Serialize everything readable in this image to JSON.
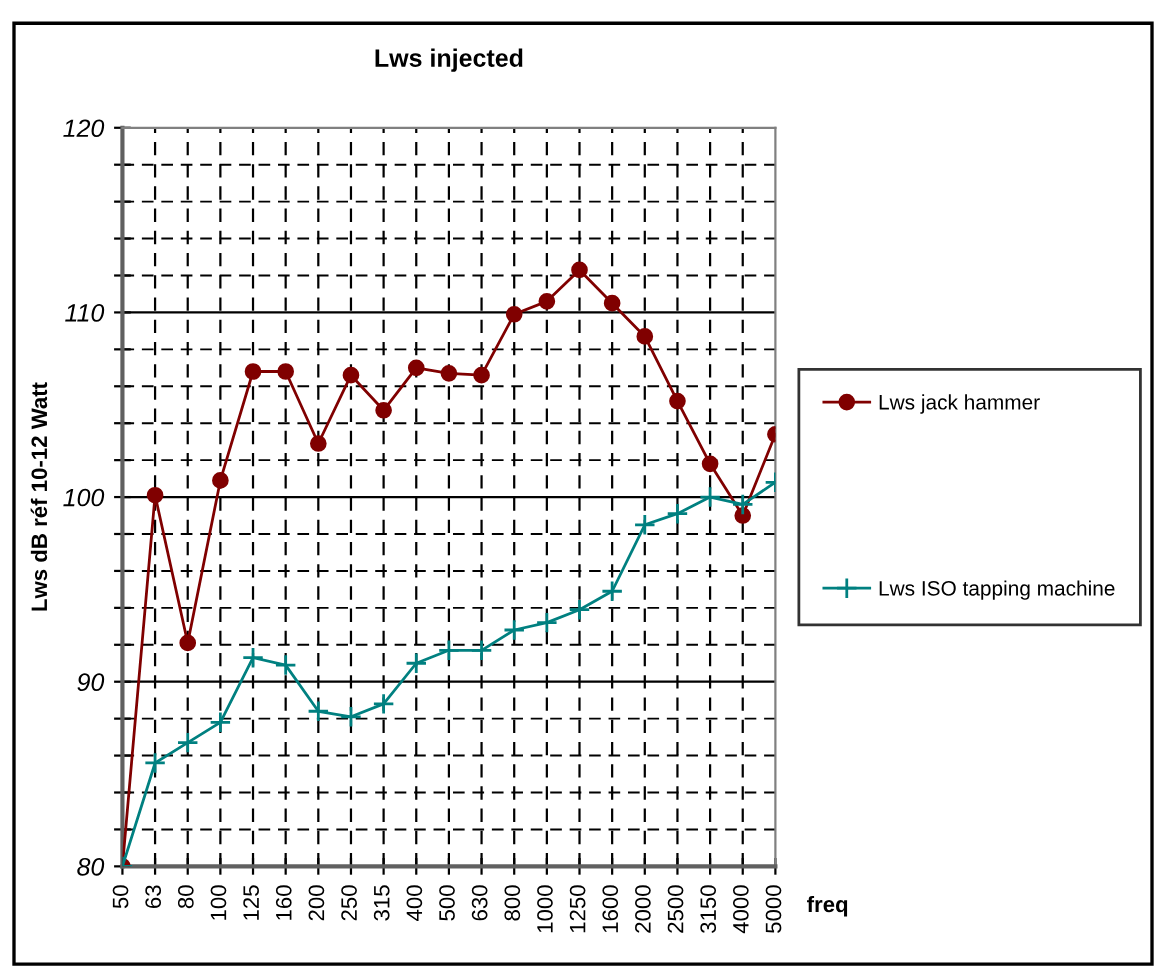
{
  "chart_data": {
    "type": "line",
    "title": "Lws injected",
    "xlabel": "freq",
    "ylabel": "Lws dB réf 10-12 Watt",
    "categories": [
      "50",
      "63",
      "80",
      "100",
      "125",
      "160",
      "200",
      "250",
      "315",
      "400",
      "500",
      "630",
      "800",
      "1000",
      "1250",
      "1600",
      "2000",
      "2500",
      "3150",
      "4000",
      "5000"
    ],
    "series": [
      {
        "name": "Lws jack hammer",
        "color": "#800000",
        "marker": "circle",
        "values": [
          80,
          100.1,
          92.1,
          100.9,
          106.8,
          106.8,
          102.9,
          106.6,
          104.7,
          107.0,
          106.7,
          106.6,
          109.9,
          110.6,
          112.3,
          110.5,
          108.7,
          105.2,
          101.8,
          99.0,
          103.4
        ]
      },
      {
        "name": "Lws ISO tapping machine",
        "color": "#008080",
        "marker": "cross",
        "values": [
          80,
          85.6,
          86.7,
          87.8,
          91.3,
          90.9,
          88.4,
          88.1,
          88.8,
          91.0,
          91.7,
          91.7,
          92.8,
          93.2,
          93.9,
          94.9,
          98.5,
          99.1,
          100.0,
          99.6,
          100.8
        ]
      }
    ],
    "ylim": [
      80,
      120
    ],
    "yticks": [
      80,
      {
        "value": 82,
        "label": null
      },
      {
        "value": 84,
        "label": null
      },
      {
        "value": 86,
        "label": null
      },
      {
        "value": 88,
        "label": null
      },
      90,
      {
        "value": 92,
        "label": null
      },
      {
        "value": 94,
        "label": null
      },
      {
        "value": 96,
        "label": null
      },
      {
        "value": 98,
        "label": null
      },
      100,
      {
        "value": 102,
        "label": null
      },
      {
        "value": 104,
        "label": null
      },
      {
        "value": 106,
        "label": null
      },
      {
        "value": 108,
        "label": null
      },
      110,
      {
        "value": 112,
        "label": null
      },
      {
        "value": 114,
        "label": null
      },
      {
        "value": 116,
        "label": null
      },
      {
        "value": 118,
        "label": null
      },
      120
    ],
    "grid": true,
    "legend": "right"
  }
}
